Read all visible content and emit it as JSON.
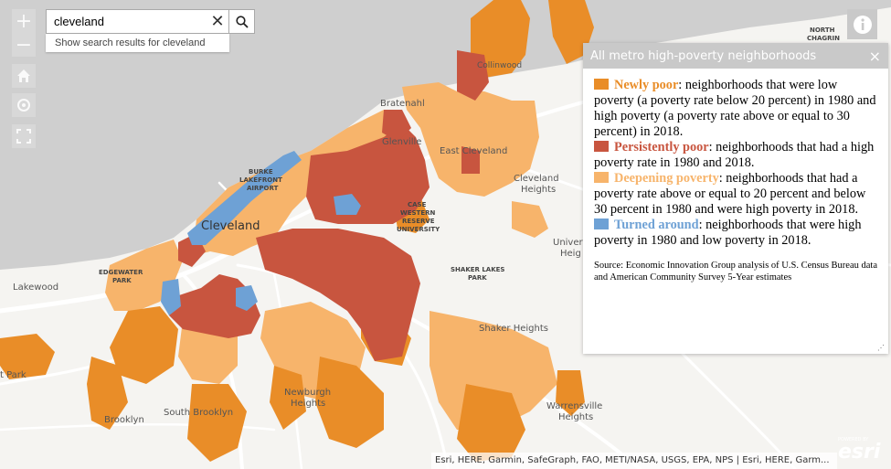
{
  "map": {
    "colors": {
      "land": "#f5f4f1",
      "water": "#cfcfcf",
      "road": "#ffffff",
      "newly_poor": "#e98d28",
      "persistently_poor": "#c8553f",
      "deepening_poverty": "#f7b46b",
      "turned_around": "#6ea1d5"
    },
    "place_labels": {
      "lakewood": "Lakewood",
      "edgewater": "EDGEWATER",
      "edgewater2": "PARK",
      "cleveland": "Cleveland",
      "burke1": "BURKE",
      "burke2": "LAKEFRONT",
      "burke3": "AIRPORT",
      "bratenahl": "Bratenahl",
      "glenville": "Glenville",
      "collinwood": "Collinwood",
      "east_cleveland": "East Cleveland",
      "cleveland_heights1": "Cleveland",
      "cleveland_heights2": "Heights",
      "case1": "CASE",
      "case2": "WESTERN",
      "case3": "RESERVE",
      "case4": "UNIVERSITY",
      "shaker_lakes1": "SHAKER LAKES",
      "shaker_lakes2": "PARK",
      "shaker_heights": "Shaker Heights",
      "univ": "Univer",
      "hts": "Heig",
      "newburgh1": "Newburgh",
      "newburgh2": "Heights",
      "south_brooklyn": "South Brooklyn",
      "brooklyn": "Brooklyn",
      "warrensville1": "Warrensville",
      "warrensville2": "Heights",
      "park": "t Park",
      "north_chagrin1": "NORTH",
      "north_chagrin2": "CHAGRIN"
    }
  },
  "controls": {
    "zoom_in": "+",
    "zoom_out": "−"
  },
  "search": {
    "value": "cleveland",
    "clear": "✕",
    "suggestion": "Show search results for cleveland"
  },
  "panel": {
    "title": "All metro high-poverty neighborhoods",
    "close": "×",
    "newly_poor_term": "Newly poor",
    "newly_poor_text": ": neighborhoods that were low poverty (a poverty rate below 20 percent) in 1980 and high poverty (a poverty rate above or equal to 30 percent) in 2018.",
    "persistently_poor_term": "Persistently poor",
    "persistently_poor_text": ": neighborhoods that had a high poverty rate in 1980 and 2018.",
    "deepening_term": "Deepening poverty",
    "deepening_text": ": neighborhoods that had a poverty rate above or equal to 20 percent and below 30 percent in 1980 and were high poverty in 2018.",
    "turned_around_term": "Turned around",
    "turned_around_text": ": neighborhoods that were high poverty in 1980 and low poverty in 2018.",
    "source": "Source: Economic Innovation Group analysis of U.S. Census Bureau data and American Community Survey 5-Year estimates"
  },
  "attribution": "Esri, HERE, Garmin, SafeGraph, FAO, METI/NASA, USGS, EPA, NPS | Esri, HERE, Garm...",
  "logo": {
    "powered": "POWERED BY",
    "name": "esri"
  }
}
